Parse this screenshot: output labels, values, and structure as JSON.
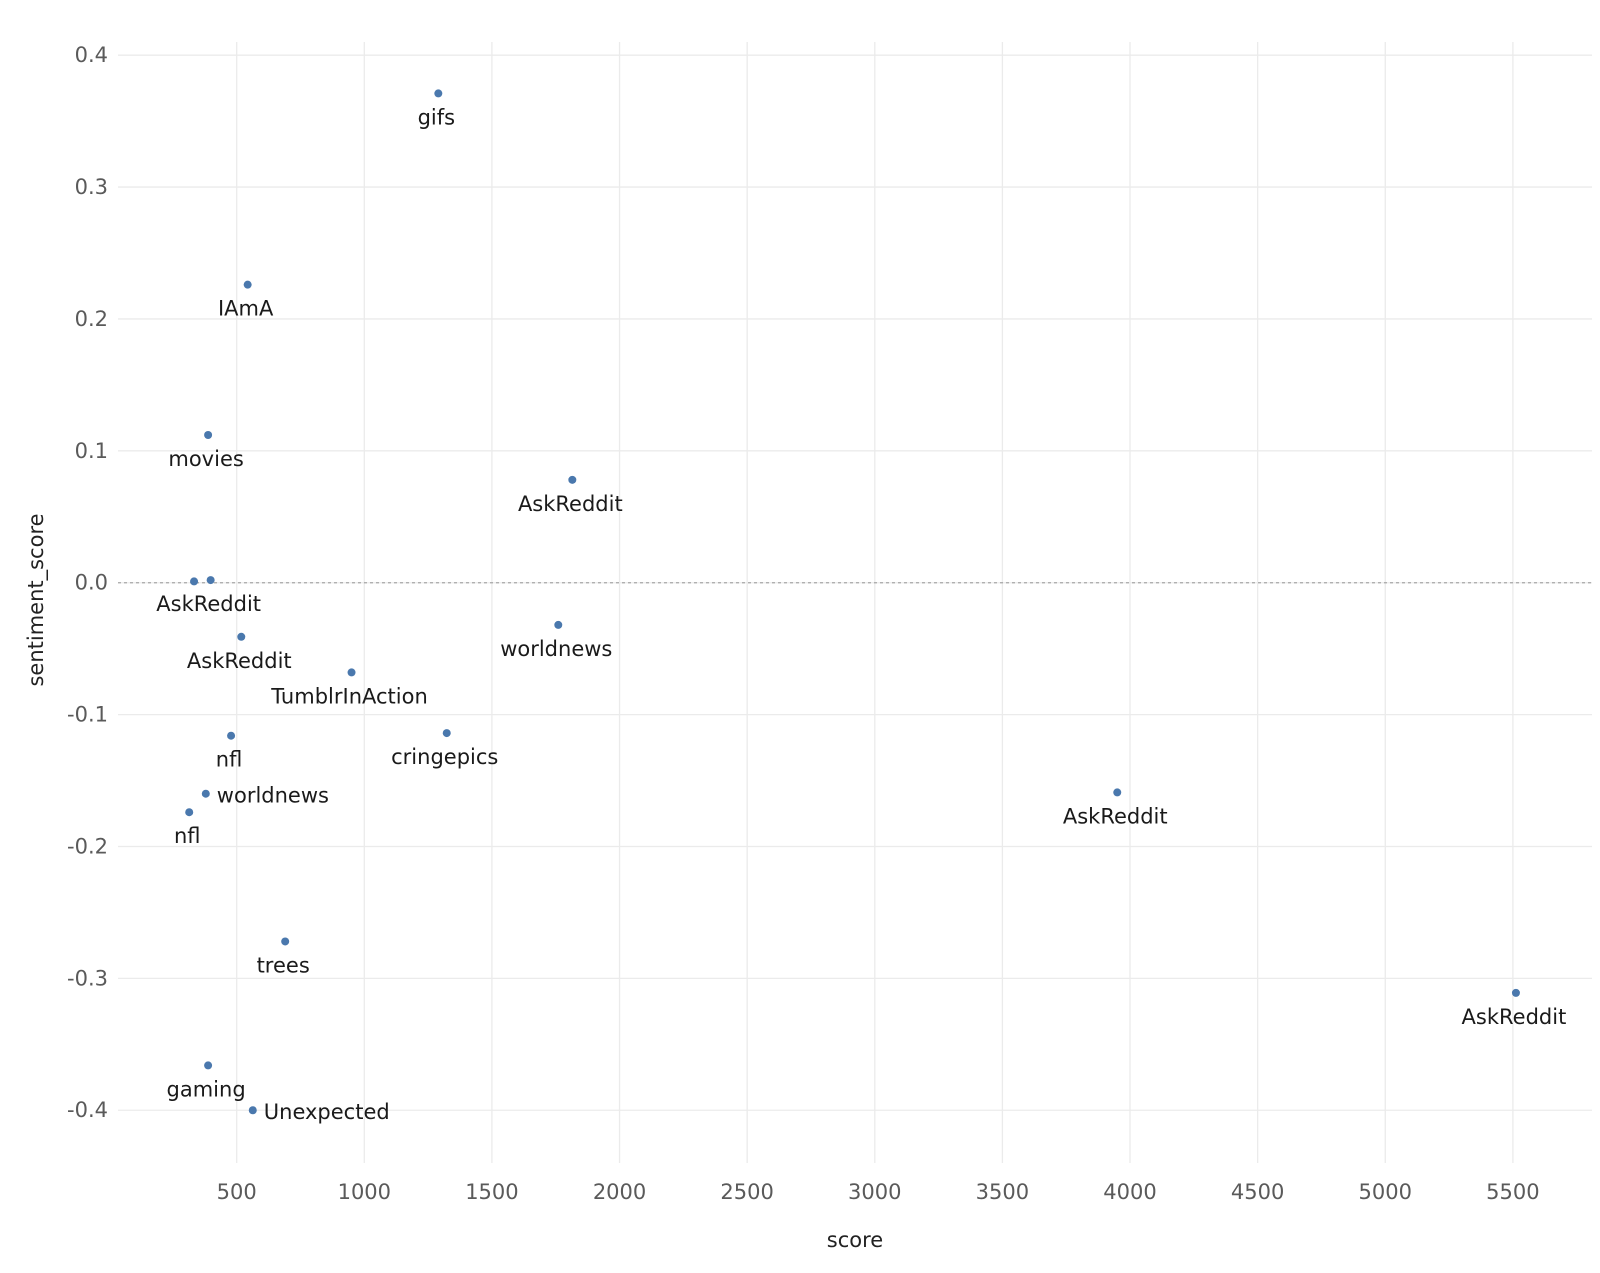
{
  "chart_data": {
    "type": "scatter",
    "xlabel": "score",
    "ylabel": "sentiment_score",
    "xlim": [
      35,
      5810
    ],
    "ylim": [
      -0.44,
      0.41
    ],
    "x_ticks": [
      500,
      1000,
      1500,
      2000,
      2500,
      3000,
      3500,
      4000,
      4500,
      5000,
      5500
    ],
    "y_ticks": [
      -0.4,
      -0.3,
      -0.2,
      -0.1,
      0.0,
      0.1,
      0.2,
      0.3,
      0.4
    ],
    "y_tick_labels": [
      "-0.4",
      "-0.3",
      "-0.2",
      "-0.1",
      "0.0",
      "0.1",
      "0.2",
      "0.3",
      "0.4"
    ],
    "grid": true,
    "reference_line": {
      "y": 0,
      "style": "dashed"
    },
    "point_color": "#4a78ad",
    "points": [
      {
        "x": 1290,
        "y": 0.371,
        "label": "gifs",
        "label_pos": "below"
      },
      {
        "x": 543,
        "y": 0.226,
        "label": "IAmA",
        "label_pos": "below"
      },
      {
        "x": 388,
        "y": 0.112,
        "label": "movies",
        "label_pos": "below"
      },
      {
        "x": 1815,
        "y": 0.078,
        "label": "AskReddit",
        "label_pos": "below"
      },
      {
        "x": 333,
        "y": 0.001,
        "label": "",
        "label_pos": "none"
      },
      {
        "x": 398,
        "y": 0.002,
        "label": "AskReddit",
        "label_pos": "below"
      },
      {
        "x": 518,
        "y": -0.041,
        "label": "AskReddit",
        "label_pos": "below"
      },
      {
        "x": 1760,
        "y": -0.032,
        "label": "worldnews",
        "label_pos": "below"
      },
      {
        "x": 950,
        "y": -0.068,
        "label": "TumblrInAction",
        "label_pos": "below"
      },
      {
        "x": 478,
        "y": -0.116,
        "label": "nfl",
        "label_pos": "below"
      },
      {
        "x": 1323,
        "y": -0.114,
        "label": "cringepics",
        "label_pos": "below"
      },
      {
        "x": 379,
        "y": -0.16,
        "label": "worldnews",
        "label_pos": "right"
      },
      {
        "x": 314,
        "y": -0.174,
        "label": "nfl",
        "label_pos": "below"
      },
      {
        "x": 3950,
        "y": -0.159,
        "label": "AskReddit",
        "label_pos": "below"
      },
      {
        "x": 690,
        "y": -0.272,
        "label": "trees",
        "label_pos": "below"
      },
      {
        "x": 5512,
        "y": -0.311,
        "label": "AskReddit",
        "label_pos": "below"
      },
      {
        "x": 388,
        "y": -0.366,
        "label": "gaming",
        "label_pos": "below"
      },
      {
        "x": 563,
        "y": -0.4,
        "label": "Unexpected",
        "label_pos": "right"
      }
    ]
  }
}
